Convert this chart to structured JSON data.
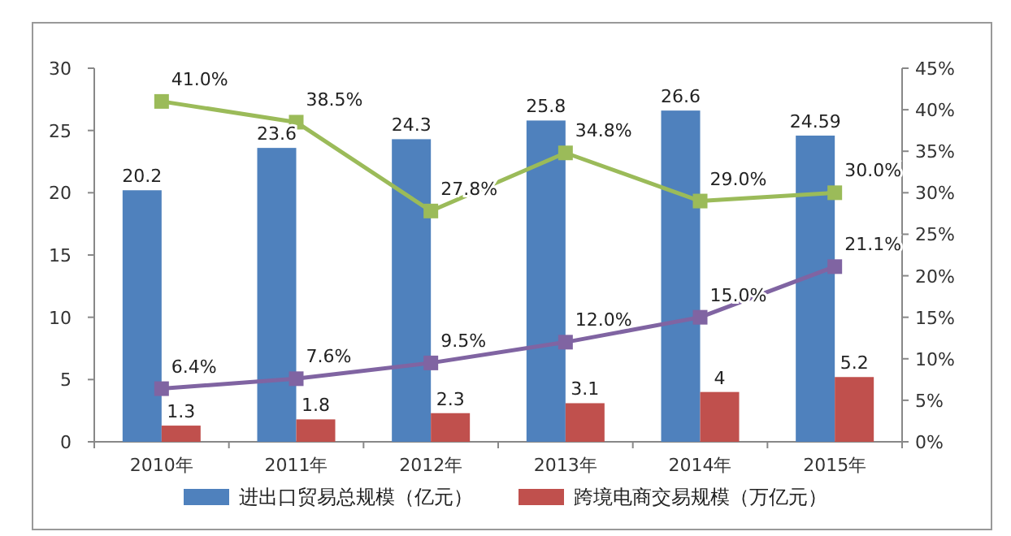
{
  "chart_data": {
    "type": "bar",
    "categories": [
      "2010年",
      "2011年",
      "2012年",
      "2013年",
      "2014年",
      "2015年"
    ],
    "series": [
      {
        "name": "进出口贸易总规模（亿元）",
        "color": "#4f81bd",
        "values": [
          20.2,
          23.6,
          24.3,
          25.8,
          26.6,
          24.59
        ]
      },
      {
        "name": "跨境电商交易规模（万亿元）",
        "color": "#c0504d",
        "values": [
          1.3,
          1.8,
          2.3,
          3.1,
          4,
          5.2
        ]
      },
      {
        "type": "line",
        "axis": "y2",
        "color": "#9bbb59",
        "values": [
          41.0,
          38.5,
          27.8,
          34.8,
          29.0,
          30.0
        ],
        "value_labels": [
          "41.0%",
          "38.5%",
          "27.8%",
          "34.8%",
          "29.0%",
          "30.0%"
        ]
      },
      {
        "type": "line",
        "axis": "y2",
        "color": "#8064a2",
        "values": [
          6.4,
          7.6,
          9.5,
          12.0,
          15.0,
          21.1
        ],
        "value_labels": [
          "6.4%",
          "7.6%",
          "9.5%",
          "12.0%",
          "15.0%",
          "21.1%"
        ]
      }
    ],
    "ylim": [
      0,
      30
    ],
    "yticks": [
      0,
      5,
      10,
      15,
      20,
      25,
      30
    ],
    "y2lim": [
      0,
      45
    ],
    "y2ticks": [
      {
        "value": 0,
        "label": "0%"
      },
      {
        "value": 5,
        "label": "5%"
      },
      {
        "value": 10,
        "label": "10%"
      },
      {
        "value": 15,
        "label": "15%"
      },
      {
        "value": 20,
        "label": "20%"
      },
      {
        "value": 25,
        "label": "25%"
      },
      {
        "value": 30,
        "label": "30%"
      },
      {
        "value": 35,
        "label": "35%"
      },
      {
        "value": 40,
        "label": "40%"
      },
      {
        "value": 45,
        "label": "45%"
      }
    ],
    "data_labels": true,
    "legend": "bottom",
    "marker": "square"
  }
}
